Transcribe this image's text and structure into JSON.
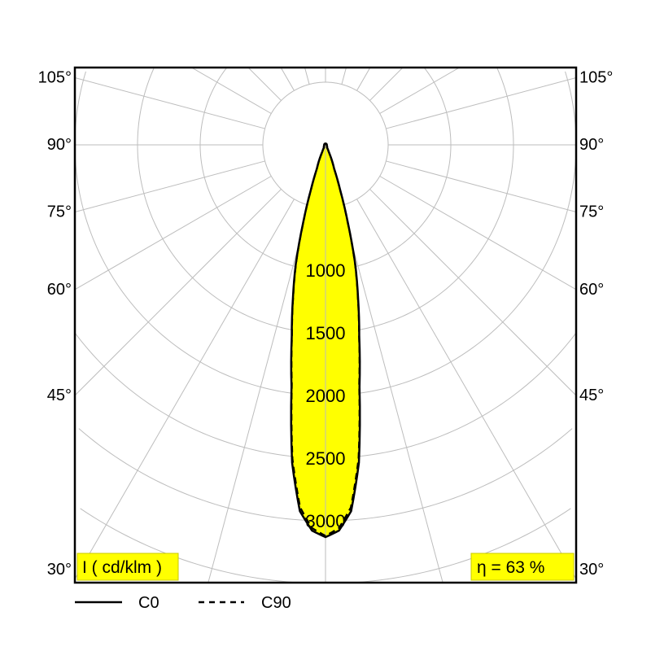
{
  "chart_data": {
    "type": "polar",
    "unit_label": "I ( cd/klm )",
    "efficiency_label": "η = 63 %",
    "angle_labels": [
      "30°",
      "45°",
      "60°",
      "75°",
      "90°",
      "105°"
    ],
    "angles": [
      30,
      45,
      60,
      75,
      90,
      105
    ],
    "ring_step": 500,
    "ring_labels": [
      "1000",
      "1500",
      "2000",
      "2500",
      "3000"
    ],
    "ring_label_values": [
      1000,
      1500,
      2000,
      2500,
      3000
    ],
    "radial_step_deg": 15,
    "grid": true,
    "fill_color": "#ffff00",
    "series": [
      {
        "name": "C0",
        "style": "solid",
        "gamma": [
          0,
          2,
          4,
          6,
          8,
          10,
          12,
          14,
          16,
          18,
          20,
          25,
          30,
          60,
          90,
          180
        ],
        "intensity": [
          3130,
          3080,
          2930,
          2550,
          1950,
          1550,
          1250,
          980,
          650,
          380,
          200,
          60,
          25,
          12,
          10,
          10
        ]
      },
      {
        "name": "C90",
        "style": "dashed",
        "gamma": [
          0,
          2,
          4,
          6,
          8,
          10,
          12,
          14,
          16,
          18,
          20,
          25,
          30,
          60,
          90,
          180
        ],
        "intensity": [
          3120,
          3060,
          2900,
          2520,
          1930,
          1540,
          1240,
          970,
          640,
          375,
          195,
          58,
          24,
          12,
          10,
          10
        ]
      }
    ],
    "legend": [
      {
        "label": "C0",
        "style": "solid"
      },
      {
        "label": "C90",
        "style": "dashed"
      }
    ],
    "legend_placement": "bottom-left"
  }
}
